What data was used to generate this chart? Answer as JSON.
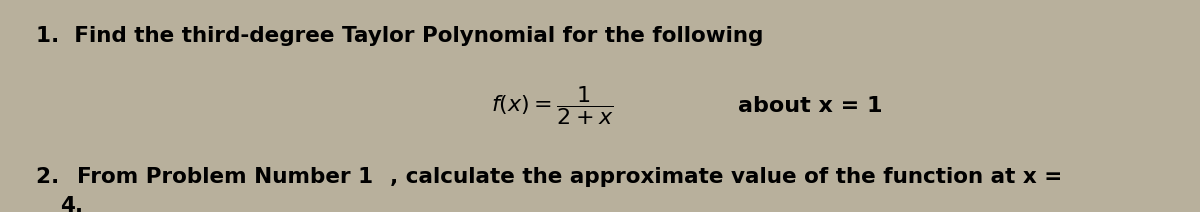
{
  "background_color": "#b8b09c",
  "text_color": "#000000",
  "fig_width": 12.0,
  "fig_height": 2.12,
  "dpi": 100,
  "line1_text": "1.  Find the third-degree Taylor Polynomial for the following",
  "line1_fontsize": 15.5,
  "formula_fontsize": 16,
  "about_text": "about x = 1",
  "about_fontsize": 16,
  "line3_part1": "2.  ",
  "line3_part2": "From Problem Number 1",
  "line3_part3": ", calculate the approximate value of the function at x =",
  "line3_fontsize": 15.5,
  "line4_text": "4.",
  "line4_fontsize": 15.5
}
